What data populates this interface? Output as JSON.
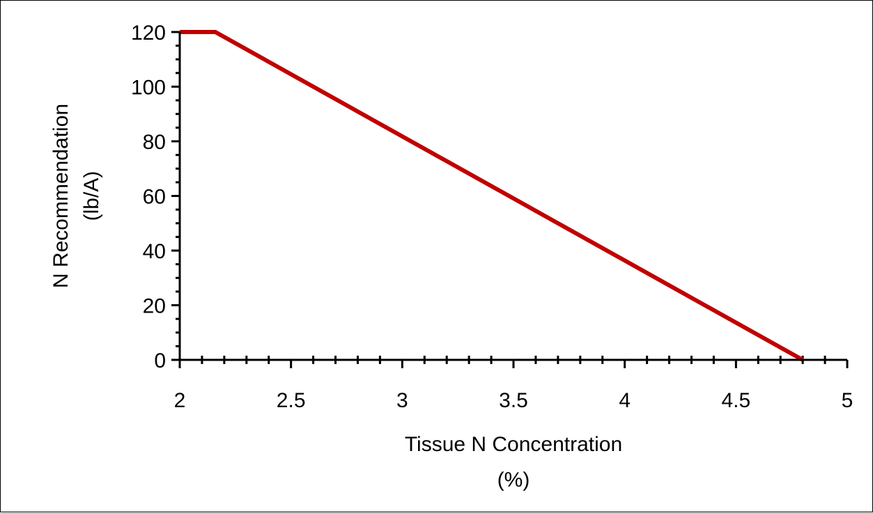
{
  "chart_data": {
    "type": "line",
    "xlabel_lines": [
      "Tissue N Concentration",
      "(%)"
    ],
    "ylabel_lines": [
      "N Recommendation",
      "(lb/A)"
    ],
    "xlim": [
      2,
      5
    ],
    "ylim": [
      0,
      120
    ],
    "x_ticks": [
      2,
      2.5,
      3,
      3.5,
      4,
      4.5,
      5
    ],
    "x_tick_labels": [
      "2",
      "2.5",
      "3",
      "3.5",
      "4",
      "4.5",
      "5"
    ],
    "y_ticks": [
      0,
      20,
      40,
      60,
      80,
      100,
      120
    ],
    "y_tick_labels": [
      "0",
      "20",
      "40",
      "60",
      "80",
      "100",
      "120"
    ],
    "x_minor_step": 0.1,
    "y_minor_step": 5,
    "grid": false,
    "legend": "none",
    "series": [
      {
        "color": "#C00000",
        "x": [
          2,
          2.16,
          4.8
        ],
        "y": [
          120,
          120,
          0
        ]
      }
    ]
  }
}
